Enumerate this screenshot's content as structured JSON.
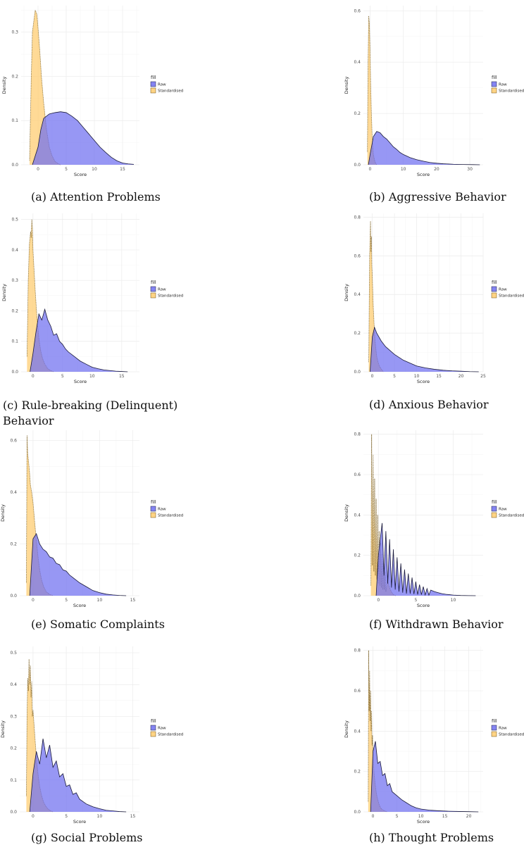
{
  "colors": {
    "raw": "#6f6ff0",
    "raw_line": "#1a1a3a",
    "std": "#ffcc6e",
    "std_line": "#6b4f10"
  },
  "chart_data": [
    {
      "id": "a",
      "type": "area",
      "caption": "(a) Attention Problems",
      "xlabel": "Score",
      "ylabel": "Density",
      "xlim": [
        -3,
        18
      ],
      "ylim": [
        0,
        0.36
      ],
      "xticks": [
        0,
        5,
        10,
        15
      ],
      "yticks": [
        0.0,
        0.1,
        0.2,
        0.3
      ],
      "xtick_labels": [
        "0",
        "5",
        "10",
        "15"
      ],
      "ytick_labels": [
        "0.0",
        "0.1",
        "0.2",
        "0.3"
      ],
      "legend": {
        "title": "fill",
        "entries": [
          "Raw",
          "Standardised"
        ]
      },
      "series": [
        {
          "name": "Raw",
          "x": [
            -1,
            0,
            0.5,
            1,
            2,
            3,
            4,
            5,
            6,
            7,
            8,
            9,
            10,
            11,
            12,
            13,
            14,
            15,
            16,
            17
          ],
          "y": [
            0.0,
            0.04,
            0.08,
            0.105,
            0.115,
            0.118,
            0.12,
            0.118,
            0.11,
            0.1,
            0.085,
            0.07,
            0.055,
            0.04,
            0.028,
            0.017,
            0.009,
            0.004,
            0.002,
            0.001
          ]
        },
        {
          "name": "Standardised",
          "x": [
            -1.5,
            -1.2,
            -1,
            -0.7,
            -0.5,
            -0.2,
            0,
            0.3,
            0.6,
            1,
            1.5,
            2,
            2.5,
            3,
            3.5,
            4
          ],
          "y": [
            0.01,
            0.2,
            0.3,
            0.33,
            0.35,
            0.34,
            0.31,
            0.26,
            0.2,
            0.14,
            0.08,
            0.04,
            0.02,
            0.008,
            0.003,
            0.0
          ]
        }
      ]
    },
    {
      "id": "b",
      "type": "area",
      "caption": "(b) Aggressive Behavior",
      "xlabel": "Score",
      "ylabel": "Density",
      "xlim": [
        -2,
        34
      ],
      "ylim": [
        0,
        0.62
      ],
      "xticks": [
        0,
        10,
        20,
        30
      ],
      "yticks": [
        0.0,
        0.2,
        0.4,
        0.6
      ],
      "xtick_labels": [
        "0",
        "10",
        "20",
        "30"
      ],
      "ytick_labels": [
        "0.0",
        "0.2",
        "0.4",
        "0.6"
      ],
      "legend": {
        "title": "fill",
        "entries": [
          "Raw",
          "Standardised"
        ]
      },
      "series": [
        {
          "name": "Raw",
          "x": [
            -0.5,
            0,
            1,
            2,
            3,
            4,
            5,
            6,
            7,
            8,
            9,
            10,
            12,
            14,
            16,
            18,
            20,
            22,
            25,
            28,
            31,
            33
          ],
          "y": [
            0.0,
            0.04,
            0.11,
            0.13,
            0.125,
            0.11,
            0.1,
            0.085,
            0.07,
            0.06,
            0.048,
            0.04,
            0.028,
            0.02,
            0.014,
            0.009,
            0.006,
            0.004,
            0.002,
            0.001,
            0.0005,
            0.0
          ]
        },
        {
          "name": "Standardised",
          "x": [
            -0.8,
            -0.6,
            -0.4,
            -0.2,
            0,
            0.2,
            0.4,
            0.6,
            0.8,
            1,
            1.3,
            1.6,
            2
          ],
          "y": [
            0.05,
            0.4,
            0.58,
            0.55,
            0.45,
            0.3,
            0.2,
            0.12,
            0.07,
            0.04,
            0.02,
            0.008,
            0.0
          ]
        }
      ]
    },
    {
      "id": "c",
      "type": "area",
      "caption": "(c)   Rule-breaking   (Delinquent) Behavior",
      "xlabel": "Score",
      "ylabel": "Density",
      "xlim": [
        -2,
        18
      ],
      "ylim": [
        0,
        0.52
      ],
      "xticks": [
        0,
        5,
        10,
        15
      ],
      "yticks": [
        0.0,
        0.1,
        0.2,
        0.3,
        0.4,
        0.5
      ],
      "xtick_labels": [
        "0",
        "5",
        "10",
        "15"
      ],
      "ytick_labels": [
        "0.0",
        "0.1",
        "0.2",
        "0.3",
        "0.4",
        "0.5"
      ],
      "legend": {
        "title": "fill",
        "entries": [
          "Raw",
          "Standardised"
        ]
      },
      "series": [
        {
          "name": "Raw",
          "x": [
            -0.5,
            0,
            0.5,
            1,
            1.5,
            2,
            2.5,
            3,
            3.5,
            4,
            4.5,
            5,
            5.5,
            6,
            7,
            8,
            9,
            10,
            11,
            12,
            13,
            14,
            15,
            16
          ],
          "y": [
            0.0,
            0.06,
            0.13,
            0.19,
            0.17,
            0.205,
            0.17,
            0.15,
            0.12,
            0.125,
            0.1,
            0.09,
            0.075,
            0.065,
            0.05,
            0.035,
            0.025,
            0.015,
            0.01,
            0.006,
            0.004,
            0.002,
            0.001,
            0.0
          ]
        },
        {
          "name": "Standardised",
          "x": [
            -1,
            -0.8,
            -0.6,
            -0.4,
            -0.3,
            -0.2,
            -0.1,
            0,
            0.2,
            0.4,
            0.6,
            0.8,
            1,
            1.3,
            1.6,
            2,
            2.5,
            3,
            3.5
          ],
          "y": [
            0.05,
            0.3,
            0.42,
            0.46,
            0.44,
            0.5,
            0.47,
            0.4,
            0.33,
            0.26,
            0.2,
            0.15,
            0.11,
            0.07,
            0.045,
            0.025,
            0.01,
            0.004,
            0.0
          ]
        }
      ]
    },
    {
      "id": "d",
      "type": "area",
      "caption": "(d) Anxious Behavior",
      "xlabel": "Score",
      "ylabel": "Density",
      "xlim": [
        -2,
        25
      ],
      "ylim": [
        0,
        0.82
      ],
      "xticks": [
        0,
        5,
        10,
        15,
        20,
        25
      ],
      "yticks": [
        0.0,
        0.2,
        0.4,
        0.6,
        0.8
      ],
      "xtick_labels": [
        "0",
        "5",
        "10",
        "15",
        "20",
        "25"
      ],
      "ytick_labels": [
        "0.0",
        "0.2",
        "0.4",
        "0.6",
        "0.8"
      ],
      "legend": {
        "title": "fill",
        "entries": [
          "Raw",
          "Standardised"
        ]
      },
      "series": [
        {
          "name": "Raw",
          "x": [
            -0.5,
            0,
            0.5,
            1,
            1.5,
            2,
            3,
            4,
            5,
            6,
            7,
            8,
            9,
            10,
            12,
            14,
            16,
            18,
            20,
            22,
            24
          ],
          "y": [
            0.0,
            0.18,
            0.23,
            0.2,
            0.18,
            0.16,
            0.13,
            0.11,
            0.09,
            0.075,
            0.06,
            0.05,
            0.04,
            0.03,
            0.02,
            0.013,
            0.008,
            0.005,
            0.003,
            0.001,
            0.0
          ]
        },
        {
          "name": "Standardised",
          "x": [
            -0.8,
            -0.6,
            -0.4,
            -0.3,
            -0.2,
            -0.1,
            0,
            0.2,
            0.4,
            0.6,
            0.8,
            1,
            1.3,
            1.6,
            2,
            2.5
          ],
          "y": [
            0.05,
            0.6,
            0.78,
            0.62,
            0.7,
            0.55,
            0.5,
            0.35,
            0.25,
            0.17,
            0.12,
            0.08,
            0.05,
            0.03,
            0.015,
            0.0
          ]
        }
      ]
    },
    {
      "id": "e",
      "type": "area",
      "caption": "(e) Somatic Complaints",
      "xlabel": "Score",
      "ylabel": "Density",
      "xlim": [
        -2,
        16
      ],
      "ylim": [
        0,
        0.64
      ],
      "xticks": [
        0,
        5,
        10,
        15
      ],
      "yticks": [
        0.0,
        0.2,
        0.4,
        0.6
      ],
      "xtick_labels": [
        "0",
        "5",
        "10",
        "15"
      ],
      "ytick_labels": [
        "0.0",
        "0.2",
        "0.4",
        "0.6"
      ],
      "legend": {
        "title": "fill",
        "entries": [
          "Raw",
          "Standardised"
        ]
      },
      "series": [
        {
          "name": "Raw",
          "x": [
            -0.5,
            0,
            0.5,
            1,
            1.5,
            2,
            2.5,
            3,
            3.5,
            4,
            4.5,
            5,
            5.5,
            6,
            7,
            8,
            9,
            10,
            11,
            12,
            13,
            14
          ],
          "y": [
            0.0,
            0.22,
            0.24,
            0.2,
            0.18,
            0.17,
            0.15,
            0.145,
            0.125,
            0.12,
            0.1,
            0.095,
            0.08,
            0.07,
            0.05,
            0.035,
            0.02,
            0.012,
            0.006,
            0.003,
            0.001,
            0.0
          ]
        },
        {
          "name": "Standardised",
          "x": [
            -1,
            -0.9,
            -0.8,
            -0.6,
            -0.5,
            -0.4,
            -0.2,
            0,
            0.2,
            0.4,
            0.6,
            0.8,
            1,
            1.3,
            1.6,
            2,
            2.5,
            3
          ],
          "y": [
            0.05,
            0.62,
            0.55,
            0.5,
            0.47,
            0.43,
            0.4,
            0.36,
            0.3,
            0.24,
            0.19,
            0.14,
            0.1,
            0.06,
            0.035,
            0.015,
            0.005,
            0.0
          ]
        }
      ]
    },
    {
      "id": "f",
      "type": "area",
      "caption": "(f) Withdrawn Behavior",
      "xlabel": "Score",
      "ylabel": "Density",
      "xlim": [
        -2,
        14
      ],
      "ylim": [
        0,
        0.82
      ],
      "xticks": [
        0,
        5,
        10
      ],
      "yticks": [
        0.0,
        0.2,
        0.4,
        0.6,
        0.8
      ],
      "xtick_labels": [
        "0",
        "5",
        "10"
      ],
      "ytick_labels": [
        "0.0",
        "0.2",
        "0.4",
        "0.6",
        "0.8"
      ],
      "legend": {
        "title": "fill",
        "entries": [
          "Raw",
          "Standardised"
        ]
      },
      "series": [
        {
          "name": "Raw",
          "x": [
            -0.3,
            0,
            0.5,
            0.75,
            1,
            1.25,
            1.5,
            1.75,
            2,
            2.25,
            2.5,
            2.75,
            3,
            3.25,
            3.5,
            3.75,
            4,
            4.25,
            4.5,
            4.75,
            5,
            5.25,
            5.5,
            5.75,
            6,
            6.25,
            6.5,
            6.75,
            7,
            7.5,
            8,
            8.5,
            9,
            9.5,
            10,
            11,
            12,
            13
          ],
          "y": [
            0.0,
            0.2,
            0.36,
            0.1,
            0.32,
            0.06,
            0.28,
            0.04,
            0.23,
            0.03,
            0.19,
            0.02,
            0.16,
            0.015,
            0.13,
            0.01,
            0.11,
            0.01,
            0.09,
            0.008,
            0.07,
            0.006,
            0.055,
            0.005,
            0.045,
            0.004,
            0.035,
            0.003,
            0.028,
            0.02,
            0.015,
            0.01,
            0.007,
            0.005,
            0.003,
            0.001,
            0.0005,
            0.0
          ]
        },
        {
          "name": "Standardised",
          "x": [
            -1,
            -0.9,
            -0.8,
            -0.7,
            -0.6,
            -0.5,
            -0.4,
            -0.3,
            -0.2,
            -0.1,
            0,
            0.1,
            0.2,
            0.3,
            0.4,
            0.5,
            0.6,
            0.7,
            0.8,
            0.9,
            1,
            1.2,
            1.4,
            1.6,
            1.8,
            2,
            2.3
          ],
          "y": [
            0.05,
            0.8,
            0.15,
            0.7,
            0.12,
            0.58,
            0.1,
            0.48,
            0.08,
            0.4,
            0.06,
            0.32,
            0.05,
            0.26,
            0.04,
            0.21,
            0.03,
            0.16,
            0.03,
            0.12,
            0.02,
            0.08,
            0.05,
            0.03,
            0.015,
            0.006,
            0.0
          ]
        }
      ]
    },
    {
      "id": "g",
      "type": "area",
      "caption": "(g) Social Problems",
      "xlabel": "Score",
      "ylabel": "Density",
      "xlim": [
        -2,
        16
      ],
      "ylim": [
        0,
        0.52
      ],
      "xticks": [
        0,
        5,
        10,
        15
      ],
      "yticks": [
        0.0,
        0.1,
        0.2,
        0.3,
        0.4,
        0.5
      ],
      "xtick_labels": [
        "0",
        "5",
        "10",
        "15"
      ],
      "ytick_labels": [
        "0.0",
        "0.1",
        "0.2",
        "0.3",
        "0.4",
        "0.5"
      ],
      "legend": {
        "title": "fill",
        "entries": [
          "Raw",
          "Standardised"
        ]
      },
      "series": [
        {
          "name": "Raw",
          "x": [
            -0.5,
            0,
            0.5,
            1,
            1.5,
            2,
            2.5,
            3,
            3.5,
            4,
            4.5,
            5,
            5.5,
            6,
            6.5,
            7,
            8,
            9,
            10,
            11,
            12,
            13,
            14
          ],
          "y": [
            0.0,
            0.12,
            0.19,
            0.15,
            0.23,
            0.17,
            0.21,
            0.14,
            0.16,
            0.11,
            0.12,
            0.08,
            0.085,
            0.055,
            0.06,
            0.04,
            0.025,
            0.016,
            0.01,
            0.005,
            0.003,
            0.001,
            0.0
          ]
        },
        {
          "name": "Standardised",
          "x": [
            -1,
            -0.9,
            -0.8,
            -0.7,
            -0.6,
            -0.5,
            -0.4,
            -0.3,
            -0.2,
            -0.1,
            0,
            0.2,
            0.4,
            0.6,
            0.8,
            1,
            1.3,
            1.6,
            2,
            2.5,
            3
          ],
          "y": [
            0.05,
            0.3,
            0.42,
            0.38,
            0.48,
            0.4,
            0.46,
            0.36,
            0.41,
            0.3,
            0.32,
            0.26,
            0.2,
            0.15,
            0.11,
            0.08,
            0.05,
            0.03,
            0.015,
            0.005,
            0.0
          ]
        }
      ]
    },
    {
      "id": "h",
      "type": "area",
      "caption": "(h) Thought Problems",
      "xlabel": "Score",
      "ylabel": "Density",
      "xlim": [
        -2,
        23
      ],
      "ylim": [
        0,
        0.82
      ],
      "xticks": [
        0,
        5,
        10,
        15,
        20
      ],
      "yticks": [
        0.0,
        0.2,
        0.4,
        0.6,
        0.8
      ],
      "xtick_labels": [
        "0",
        "5",
        "10",
        "15",
        "20"
      ],
      "ytick_labels": [
        "0.0",
        "0.2",
        "0.4",
        "0.6",
        "0.8"
      ],
      "legend": {
        "title": "fill",
        "entries": [
          "Raw",
          "Standardised"
        ]
      },
      "series": [
        {
          "name": "Raw",
          "x": [
            -0.5,
            0,
            0.5,
            1,
            1.5,
            2,
            2.5,
            3,
            3.5,
            4,
            5,
            6,
            7,
            8,
            9,
            10,
            12,
            14,
            16,
            18,
            20,
            22
          ],
          "y": [
            0.0,
            0.3,
            0.35,
            0.24,
            0.25,
            0.18,
            0.19,
            0.13,
            0.14,
            0.1,
            0.08,
            0.06,
            0.045,
            0.03,
            0.02,
            0.014,
            0.008,
            0.005,
            0.003,
            0.002,
            0.001,
            0.0
          ]
        },
        {
          "name": "Standardised",
          "x": [
            -1,
            -0.9,
            -0.8,
            -0.7,
            -0.6,
            -0.5,
            -0.4,
            -0.3,
            -0.2,
            -0.1,
            0,
            0.2,
            0.4,
            0.6,
            0.8,
            1,
            1.3,
            1.6,
            2,
            2.5,
            3
          ],
          "y": [
            0.05,
            0.8,
            0.5,
            0.7,
            0.45,
            0.6,
            0.4,
            0.5,
            0.33,
            0.38,
            0.27,
            0.2,
            0.15,
            0.11,
            0.08,
            0.06,
            0.035,
            0.02,
            0.01,
            0.004,
            0.0
          ]
        }
      ]
    }
  ]
}
